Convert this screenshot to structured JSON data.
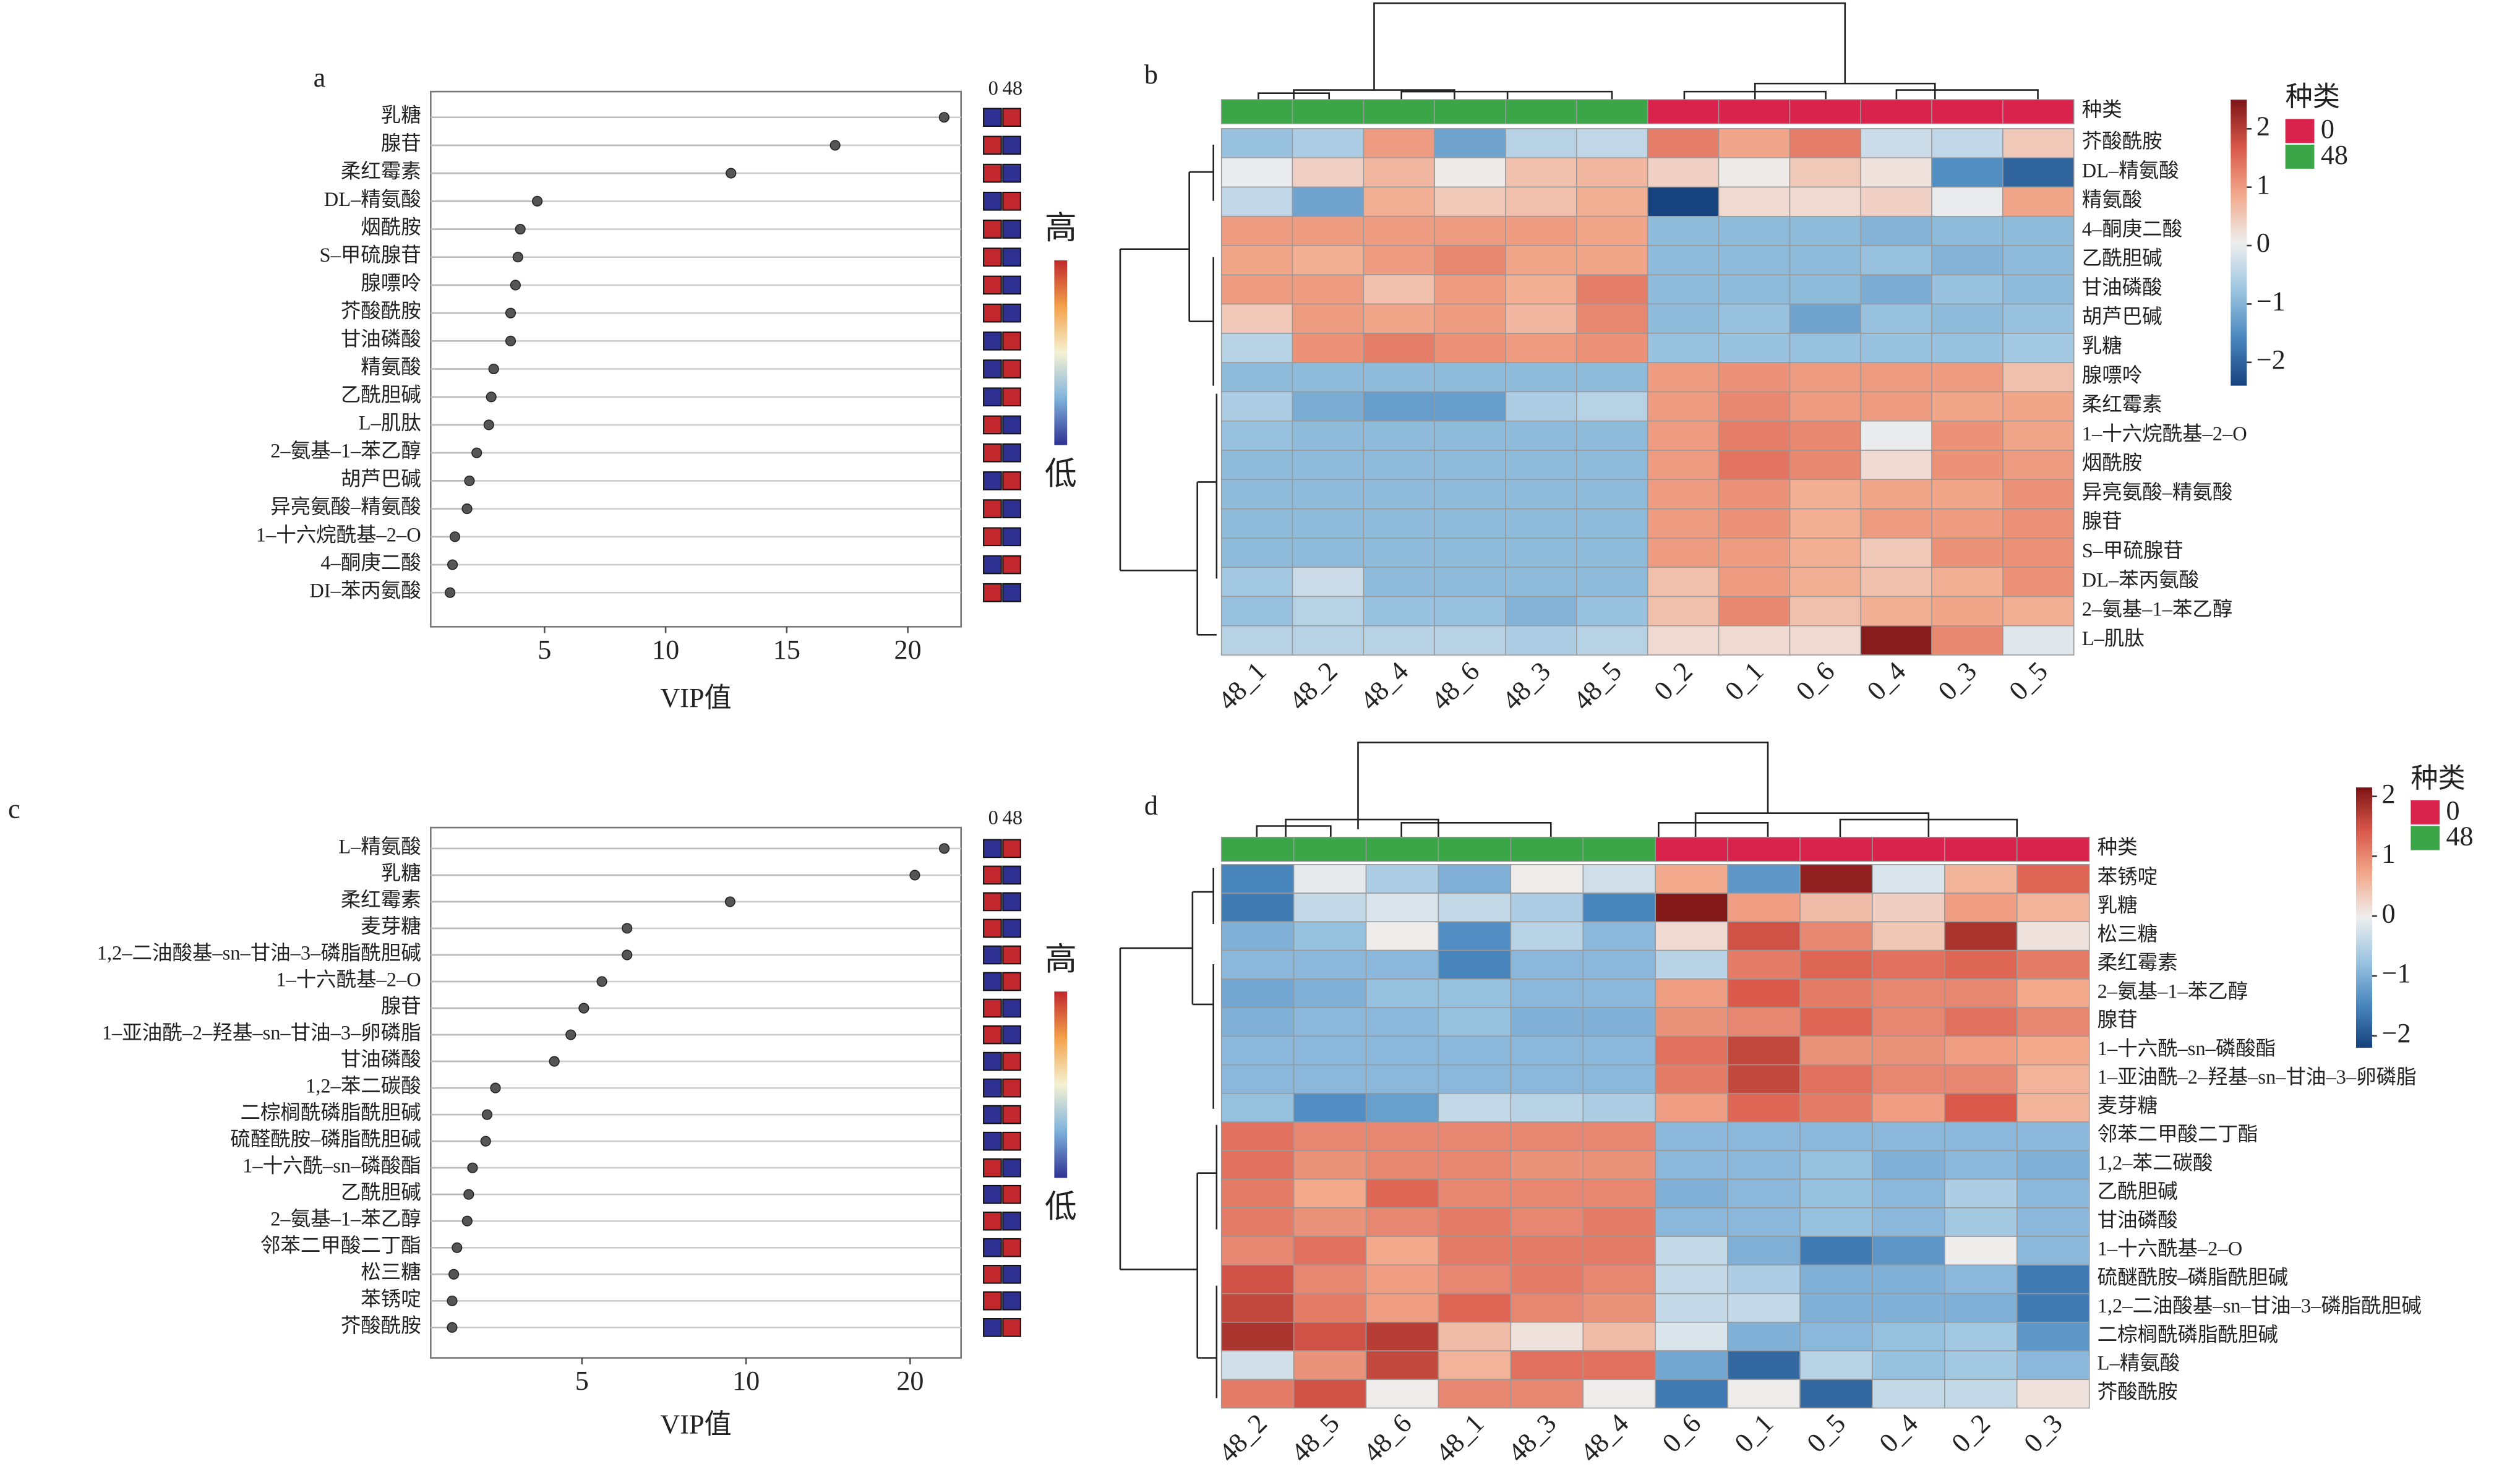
{
  "chart_data": [
    {
      "type": "lollipop",
      "panel_label": "a",
      "xlabel": "VIP值",
      "categories": [
        "乳糖",
        "腺苷",
        "柔红霉素",
        "DL–精氨酸",
        "烟酰胺",
        "S–甲硫腺苷",
        "腺嘌呤",
        "芥酸酰胺",
        "甘油磷酸",
        "精氨酸",
        "乙酰胆碱",
        "L–肌肽",
        "2–氨基–1–苯乙醇",
        "胡芦巴碱",
        "异亮氨酸–精氨酸",
        "1–十六烷酰基–2–O",
        "4–酮庚二酸",
        "DI–苯丙氨酸"
      ],
      "values": [
        21.5,
        17.0,
        12.7,
        4.7,
        4.0,
        3.9,
        3.8,
        3.6,
        3.6,
        2.9,
        2.8,
        2.7,
        2.2,
        1.9,
        1.8,
        1.3,
        1.2,
        1.1
      ],
      "xlim": [
        0.3,
        22.2
      ],
      "xticks": [
        5,
        10,
        15,
        20
      ],
      "color": "#555555",
      "group_labels": [
        "0",
        "48"
      ],
      "high_group": [
        "48",
        "0",
        "0",
        "48",
        "0",
        "0",
        "0",
        "0",
        "48",
        "48",
        "48",
        "0",
        "0",
        "48",
        "0",
        "0",
        "48",
        "0"
      ],
      "marker_colors": {
        "high": "#c1272d",
        "low": "#2e3192"
      },
      "scale_labels": {
        "high": "高",
        "low": "低"
      },
      "scale_colors": [
        "#2e3192",
        "#7fb2dc",
        "#f4f1d2",
        "#f4a24a",
        "#c1272d"
      ]
    },
    {
      "type": "heatmap",
      "panel_label": "b",
      "annotation_label": "种类",
      "legend_title": "种类",
      "columns": [
        "48_1",
        "48_2",
        "48_4",
        "48_6",
        "48_3",
        "48_5",
        "0_2",
        "0_1",
        "0_6",
        "0_4",
        "0_3",
        "0_5"
      ],
      "groups": [
        "48",
        "48",
        "48",
        "48",
        "48",
        "48",
        "0",
        "0",
        "0",
        "0",
        "0",
        "0"
      ],
      "legend": [
        {
          "name": "0",
          "color": "#d9234d"
        },
        {
          "name": "48",
          "color": "#3aa648"
        }
      ],
      "rows": [
        "芥酸酰胺",
        "DL–精氨酸",
        "精氨酸",
        "4–酮庚二酸",
        "乙酰胆碱",
        "甘油磷酸",
        "胡芦巴碱",
        "乳糖",
        "腺嘌呤",
        "柔红霉素",
        "1–十六烷酰基–2–O",
        "烟酰胺",
        "异亮氨酸–精氨酸",
        "腺苷",
        "S–甲硫腺苷",
        "DL–苯丙氨酸",
        "2–氨基–1–苯乙醇",
        "L–肌肽"
      ],
      "values": [
        [
          -0.8,
          -0.6,
          1.0,
          -1.2,
          -0.5,
          -0.4,
          1.3,
          0.9,
          1.3,
          -0.3,
          -0.4,
          0.5
        ],
        [
          0.0,
          0.4,
          0.7,
          0.1,
          0.6,
          0.7,
          0.4,
          0.1,
          0.5,
          0.2,
          -1.5,
          -2.0
        ],
        [
          -0.4,
          -1.2,
          0.8,
          0.5,
          0.6,
          0.8,
          -2.4,
          0.3,
          0.3,
          0.4,
          0.0,
          0.9
        ],
        [
          1.0,
          1.0,
          1.0,
          1.0,
          1.0,
          0.9,
          -0.9,
          -0.9,
          -0.9,
          -1.0,
          -0.9,
          -0.9
        ],
        [
          0.9,
          0.8,
          1.0,
          1.2,
          0.9,
          0.9,
          -0.9,
          -0.9,
          -0.9,
          -0.8,
          -1.0,
          -0.9
        ],
        [
          1.0,
          1.0,
          0.6,
          1.0,
          0.8,
          1.3,
          -0.9,
          -0.9,
          -0.9,
          -1.1,
          -0.8,
          -0.9
        ],
        [
          0.5,
          1.0,
          0.9,
          1.0,
          0.7,
          1.2,
          -0.9,
          -0.8,
          -1.2,
          -0.8,
          -0.9,
          -0.8
        ],
        [
          -0.5,
          1.1,
          1.3,
          1.1,
          1.0,
          1.1,
          -0.8,
          -0.8,
          -0.8,
          -0.8,
          -0.8,
          -0.7
        ],
        [
          -0.9,
          -0.9,
          -0.9,
          -0.9,
          -0.9,
          -0.9,
          1.0,
          1.1,
          1.0,
          1.0,
          1.0,
          0.6
        ],
        [
          -0.6,
          -1.1,
          -1.3,
          -1.3,
          -0.6,
          -0.5,
          1.0,
          1.2,
          1.0,
          1.0,
          0.9,
          0.9
        ],
        [
          -0.8,
          -0.9,
          -0.9,
          -0.9,
          -0.9,
          -0.9,
          1.0,
          1.3,
          1.2,
          0.0,
          1.1,
          0.9
        ],
        [
          -0.9,
          -0.9,
          -0.9,
          -0.9,
          -0.9,
          -0.9,
          1.0,
          1.4,
          1.2,
          0.3,
          1.1,
          1.0
        ],
        [
          -0.9,
          -0.9,
          -0.9,
          -0.9,
          -0.9,
          -0.9,
          1.0,
          1.1,
          0.8,
          0.9,
          0.9,
          1.1
        ],
        [
          -0.9,
          -0.9,
          -0.9,
          -0.9,
          -0.9,
          -0.9,
          1.0,
          1.1,
          0.8,
          1.0,
          1.0,
          1.1
        ],
        [
          -0.9,
          -0.9,
          -0.9,
          -0.9,
          -0.9,
          -0.9,
          1.0,
          1.0,
          0.8,
          0.5,
          1.1,
          1.1
        ],
        [
          -0.7,
          -0.3,
          -0.9,
          -0.9,
          -0.9,
          -0.9,
          0.6,
          1.0,
          0.8,
          0.6,
          0.8,
          1.1
        ],
        [
          -0.8,
          -0.5,
          -0.8,
          -0.8,
          -1.0,
          -0.8,
          0.6,
          1.2,
          0.6,
          0.8,
          0.9,
          0.8
        ],
        [
          -0.5,
          -0.5,
          -0.5,
          -0.5,
          -0.6,
          -0.5,
          0.3,
          0.3,
          0.3,
          2.4,
          1.2,
          -0.1
        ]
      ],
      "zlim": [
        -2.4,
        2.5
      ],
      "zticks": [
        {
          "value": -2,
          "label": "−2"
        },
        {
          "value": -1,
          "label": "−1"
        },
        0,
        1,
        2
      ],
      "colors": [
        "#16427d",
        "#4a87bf",
        "#9cc5e1",
        "#eeeeee",
        "#f2a98c",
        "#d9584a",
        "#7e1416"
      ]
    },
    {
      "type": "lollipop",
      "panel_label": "c",
      "xlabel": "VIP值",
      "xscale": "log",
      "categories": [
        "L–精氨酸",
        "乳糖",
        "柔红霉素",
        "麦芽糖",
        "1,2–二油酸基–sn–甘油–3–磷脂酰胆碱",
        "1–十六酰基–2–O",
        "腺苷",
        "1–亚油酰–2–羟基–sn–甘油–3–卵磷脂",
        "甘油磷酸",
        "1,2–苯二碳酸",
        "二棕榈酰磷脂酰胆碱",
        "硫醛酰胺–磷脂酰胆碱",
        "1–十六酰–sn–磷酸酯",
        "乙酰胆碱",
        "2–氨基–1–苯乙醇",
        "邻苯二甲酸二丁酯",
        "松三糖",
        "苯锈啶",
        "芥酸酰胺"
      ],
      "values": [
        23.1,
        20.4,
        9.35,
        6.05,
        6.05,
        5.44,
        5.04,
        4.77,
        4.45,
        3.47,
        3.35,
        3.33,
        3.15,
        3.1,
        3.08,
        2.95,
        2.91,
        2.89,
        2.89
      ],
      "xlim": [
        2.64,
        24.8
      ],
      "xticks": [
        5,
        10,
        20
      ],
      "color": "#555555",
      "group_labels": [
        "0",
        "48"
      ],
      "high_group": [
        "48",
        "0",
        "0",
        "0",
        "48",
        "48",
        "0",
        "0",
        "48",
        "48",
        "48",
        "48",
        "0",
        "48",
        "0",
        "48",
        "0",
        "0",
        "48"
      ],
      "marker_colors": {
        "high": "#c1272d",
        "low": "#2e3192"
      },
      "scale_labels": {
        "high": "高",
        "low": "低"
      },
      "scale_colors": [
        "#2e3192",
        "#7fb2dc",
        "#f4f1d2",
        "#f4a24a",
        "#c1272d"
      ]
    },
    {
      "type": "heatmap",
      "panel_label": "d",
      "annotation_label": "种类",
      "legend_title": "种类",
      "columns": [
        "48_2",
        "48_5",
        "48_6",
        "48_1",
        "48_3",
        "48_4",
        "0_6",
        "0_1",
        "0_5",
        "0_4",
        "0_2",
        "0_3"
      ],
      "groups": [
        "48",
        "48",
        "48",
        "48",
        "48",
        "48",
        "0",
        "0",
        "0",
        "0",
        "0",
        "0"
      ],
      "legend": [
        {
          "name": "0",
          "color": "#d9234d"
        },
        {
          "name": "48",
          "color": "#3aa648"
        }
      ],
      "rows": [
        "苯锈啶",
        "乳糖",
        "松三糖",
        "柔红霉素",
        "2–氨基–1–苯乙醇",
        "腺苷",
        "1–十六酰–sn–磷酸酯",
        "1–亚油酰–2–羟基–sn–甘油–3–卵磷脂",
        "麦芽糖",
        "邻苯二甲酸二丁酯",
        "1,2–苯二碳酸",
        "乙酰胆碱",
        "甘油磷酸",
        "1–十六酰基–2–O",
        "硫醚酰胺–磷脂酰胆碱",
        "1,2–二油酸基–sn–甘油–3–磷脂酰胆碱",
        "二棕榈酰磷脂酰胆碱",
        "L–精氨酸",
        "芥酸酰胺"
      ],
      "values": [
        [
          -1.5,
          -0.1,
          -0.6,
          -1.0,
          0.0,
          -0.3,
          0.7,
          -1.3,
          2.0,
          -0.2,
          0.6,
          1.3
        ],
        [
          -1.6,
          -0.4,
          -0.2,
          -0.4,
          -0.6,
          -1.5,
          2.1,
          0.8,
          0.5,
          0.3,
          0.8,
          0.6
        ],
        [
          -1.0,
          -0.8,
          0.0,
          -1.4,
          -0.5,
          -0.9,
          0.2,
          1.5,
          1.0,
          0.4,
          1.8,
          0.1
        ],
        [
          -0.9,
          -0.9,
          -0.9,
          -1.5,
          -0.9,
          -0.9,
          -0.5,
          1.1,
          1.3,
          1.2,
          1.3,
          1.1
        ],
        [
          -1.1,
          -1.0,
          -0.8,
          -0.8,
          -0.9,
          -0.9,
          0.8,
          1.4,
          1.1,
          1.0,
          1.0,
          0.7
        ],
        [
          -1.0,
          -0.9,
          -0.9,
          -0.8,
          -1.0,
          -1.0,
          0.9,
          1.0,
          1.3,
          1.0,
          1.2,
          1.0
        ],
        [
          -0.9,
          -0.9,
          -0.9,
          -0.9,
          -0.9,
          -0.9,
          1.2,
          1.6,
          0.9,
          0.9,
          0.8,
          0.7
        ],
        [
          -0.9,
          -0.9,
          -0.9,
          -0.9,
          -0.9,
          -0.9,
          1.1,
          1.6,
          1.2,
          1.0,
          1.0,
          0.6
        ],
        [
          -0.8,
          -1.4,
          -1.2,
          -0.4,
          -0.5,
          -0.6,
          0.8,
          1.3,
          1.1,
          0.8,
          1.4,
          0.6
        ],
        [
          1.2,
          1.0,
          1.0,
          1.0,
          1.0,
          1.0,
          -0.9,
          -0.9,
          -0.9,
          -0.9,
          -0.9,
          -0.9
        ],
        [
          1.2,
          0.9,
          1.0,
          1.0,
          0.9,
          0.9,
          -0.9,
          -0.9,
          -0.8,
          -1.0,
          -0.9,
          -1.0
        ],
        [
          1.1,
          0.7,
          1.3,
          1.0,
          1.0,
          1.0,
          -1.0,
          -0.9,
          -0.8,
          -0.9,
          -0.6,
          -0.9
        ],
        [
          1.1,
          0.9,
          1.0,
          1.1,
          1.0,
          1.1,
          -0.9,
          -0.9,
          -0.8,
          -0.9,
          -0.7,
          -0.9
        ],
        [
          1.0,
          1.2,
          0.7,
          1.1,
          1.1,
          1.1,
          -0.4,
          -1.0,
          -1.6,
          -1.3,
          0.0,
          -0.9
        ],
        [
          1.5,
          1.0,
          0.8,
          1.0,
          1.1,
          1.0,
          -0.4,
          -0.6,
          -1.0,
          -1.0,
          -0.9,
          -1.6
        ],
        [
          1.6,
          1.1,
          0.8,
          1.3,
          1.0,
          0.9,
          -0.4,
          -0.4,
          -1.0,
          -1.0,
          -1.0,
          -1.6
        ],
        [
          1.8,
          1.5,
          1.7,
          0.5,
          0.1,
          0.5,
          -0.2,
          -1.0,
          -0.9,
          -0.8,
          -0.7,
          -1.3
        ],
        [
          -0.3,
          0.9,
          1.6,
          0.6,
          1.2,
          1.2,
          -1.1,
          -1.8,
          -0.5,
          -0.8,
          -0.7,
          -0.9
        ],
        [
          1.1,
          1.5,
          0.0,
          1.0,
          1.0,
          0.0,
          -1.6,
          0.0,
          -1.8,
          -0.4,
          -0.4,
          0.1
        ]
      ],
      "zlim": [
        -2.2,
        2.15
      ],
      "zticks": [
        {
          "value": -2,
          "label": "−2"
        },
        {
          "value": -1,
          "label": "−1"
        },
        0,
        1,
        2
      ],
      "colors": [
        "#16427d",
        "#4a87bf",
        "#9cc5e1",
        "#eeeeee",
        "#f2a98c",
        "#d9584a",
        "#7e1416"
      ]
    }
  ]
}
